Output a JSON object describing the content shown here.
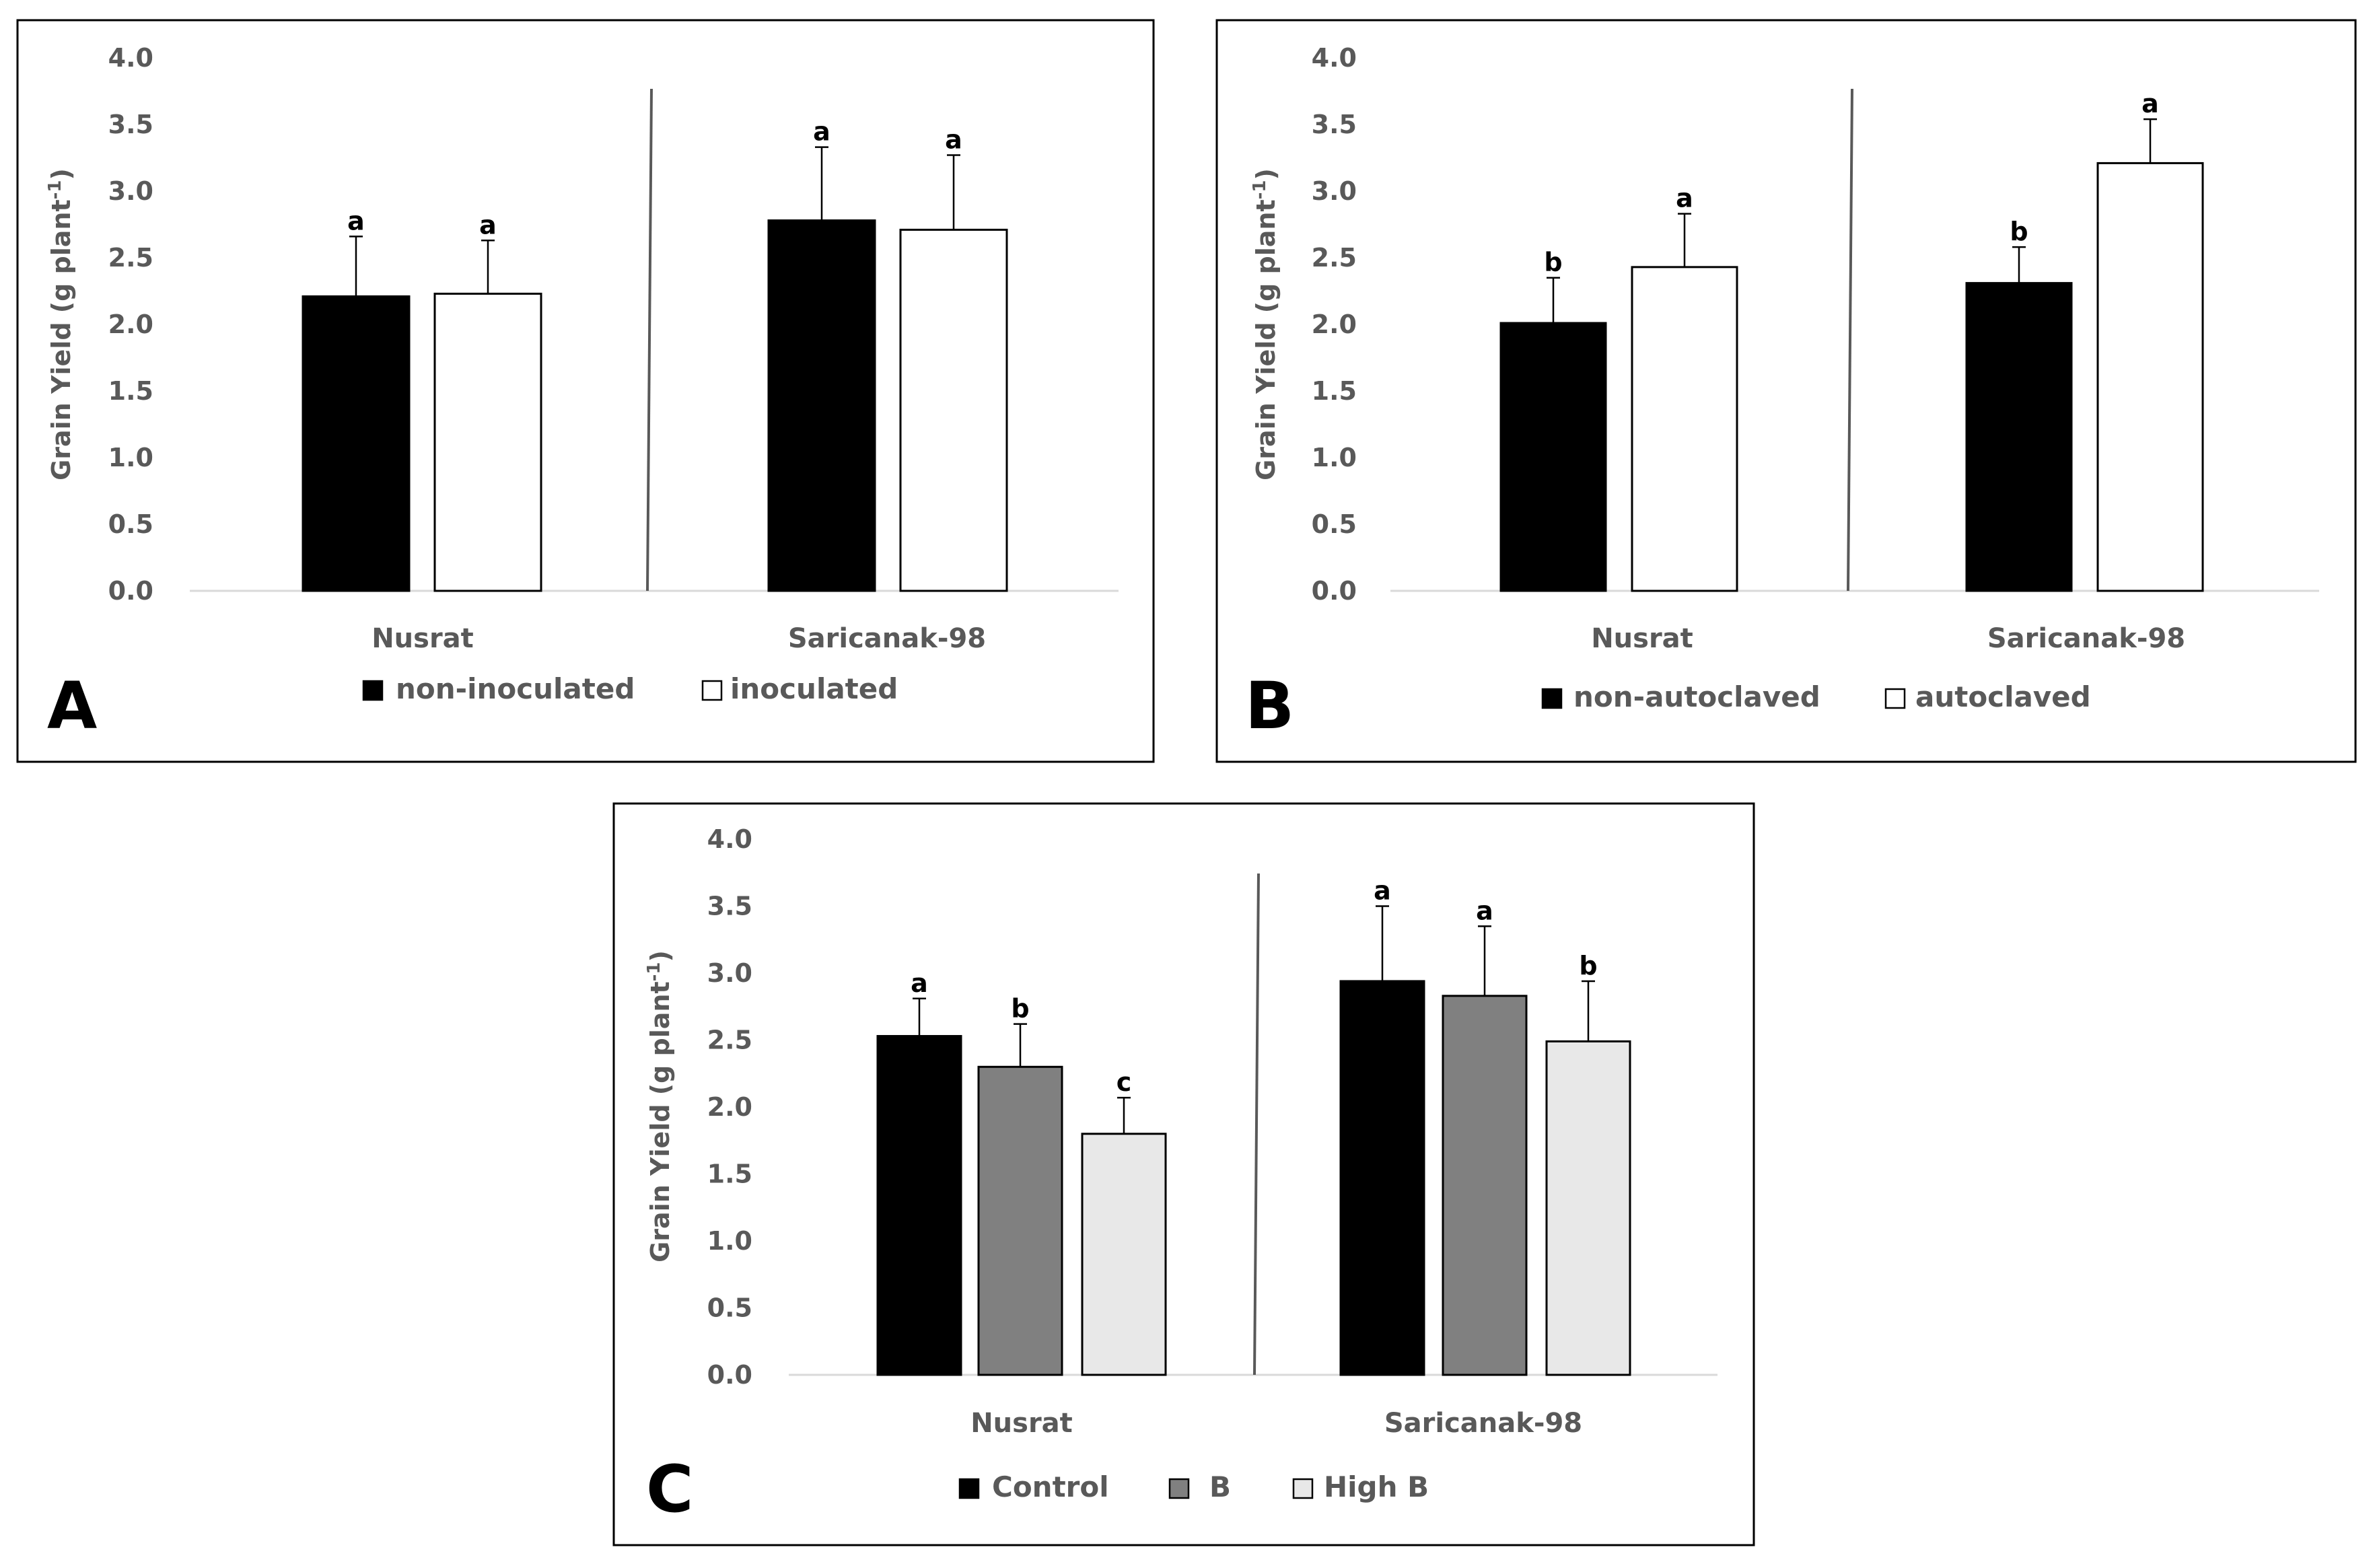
{
  "chart_data": [
    {
      "type": "bar",
      "panel_label": "A",
      "ylabel": "Grain Yield (g plant",
      "ylabel_sup": "-1",
      "ylim": [
        0,
        4.0
      ],
      "yticks": [
        "0.0",
        "0.5",
        "1.0",
        "1.5",
        "2.0",
        "2.5",
        "3.0",
        "3.5",
        "4.0"
      ],
      "categories": [
        "Nusrat",
        "Saricanak-98"
      ],
      "series": [
        {
          "name": "non-inoculated",
          "color": "#000000",
          "values": [
            2.21,
            2.78
          ],
          "errors": [
            0.45,
            0.55
          ],
          "letters": [
            "a",
            "a"
          ]
        },
        {
          "name": "inoculated",
          "color": "#ffffff",
          "values": [
            2.23,
            2.71
          ],
          "errors": [
            0.4,
            0.56
          ],
          "letters": [
            "a",
            "a"
          ]
        }
      ]
    },
    {
      "type": "bar",
      "panel_label": "B",
      "ylabel": "Grain Yield (g plant",
      "ylabel_sup": "-1",
      "ylim": [
        0,
        4.0
      ],
      "yticks": [
        "0.0",
        "0.5",
        "1.0",
        "1.5",
        "2.0",
        "2.5",
        "3.0",
        "3.5",
        "4.0"
      ],
      "categories": [
        "Nusrat",
        "Saricanak-98"
      ],
      "series": [
        {
          "name": "non-autoclaved",
          "color": "#000000",
          "values": [
            2.01,
            2.31
          ],
          "errors": [
            0.34,
            0.27
          ],
          "letters": [
            "b",
            "b"
          ]
        },
        {
          "name": "autoclaved",
          "color": "#ffffff",
          "values": [
            2.43,
            3.21
          ],
          "errors": [
            0.4,
            0.33
          ],
          "letters": [
            "a",
            "a"
          ]
        }
      ]
    },
    {
      "type": "bar",
      "panel_label": "C",
      "ylabel": "Grain Yield (g plant",
      "ylabel_sup": "-1",
      "ylim": [
        0,
        4.0
      ],
      "yticks": [
        "0.0",
        "0.5",
        "1.0",
        "1.5",
        "2.0",
        "2.5",
        "3.0",
        "3.5",
        "4.0"
      ],
      "categories": [
        "Nusrat",
        "Saricanak-98"
      ],
      "series": [
        {
          "name": "Control",
          "color": "#000000",
          "values": [
            2.53,
            2.94
          ],
          "errors": [
            0.28,
            0.56
          ],
          "letters": [
            "a",
            "a"
          ]
        },
        {
          "name": "B",
          "color": "#808080",
          "values": [
            2.3,
            2.83
          ],
          "errors": [
            0.32,
            0.52
          ],
          "letters": [
            "b",
            "a"
          ]
        },
        {
          "name": "High B",
          "color": "#e8e8e8",
          "values": [
            1.8,
            2.49
          ],
          "errors": [
            0.27,
            0.45
          ],
          "letters": [
            "c",
            "b"
          ]
        }
      ]
    }
  ]
}
